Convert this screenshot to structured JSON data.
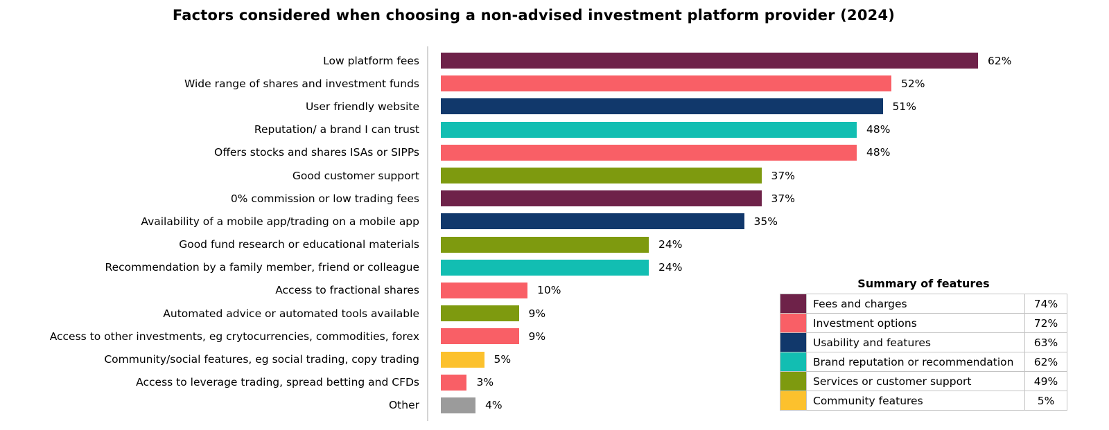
{
  "title": "Factors considered when choosing a non-advised investment platform provider (2024)",
  "colors": {
    "maroon": "#6e2249",
    "coral": "#f95f66",
    "navy": "#11386b",
    "teal": "#12beb2",
    "olive": "#7e9a0f",
    "yellow": "#fcc12d",
    "gray": "#9b9b9b"
  },
  "chart_data": [
    {
      "type": "bar",
      "orientation": "horizontal",
      "title": "Factors considered when choosing a non-advised investment platform provider (2024)",
      "categories": [
        "Low platform fees",
        "Wide range of shares and investment funds",
        "User friendly website",
        "Reputation/ a brand I can trust",
        "Offers stocks and shares ISAs or SIPPs",
        "Good customer support",
        "0% commission or low trading fees",
        "Availability of a mobile app/trading on a mobile app",
        "Good fund research or educational materials",
        "Recommendation by a family member, friend or colleague",
        "Access to fractional shares",
        "Automated advice or automated tools available",
        "Access to other investments, eg crytocurrencies, commodities, forex",
        "Community/social features, eg social trading, copy trading",
        "Access to leverage trading, spread betting and CFDs",
        "Other"
      ],
      "values": [
        62,
        52,
        51,
        48,
        48,
        37,
        37,
        35,
        24,
        24,
        10,
        9,
        9,
        5,
        3,
        4
      ],
      "value_labels": [
        "62%",
        "52%",
        "51%",
        "48%",
        "48%",
        "37%",
        "37%",
        "35%",
        "24%",
        "24%",
        "10%",
        "9%",
        "9%",
        "5%",
        "3%",
        "4%"
      ],
      "bar_colors": [
        "maroon",
        "coral",
        "navy",
        "teal",
        "coral",
        "olive",
        "maroon",
        "navy",
        "olive",
        "teal",
        "coral",
        "olive",
        "coral",
        "yellow",
        "coral",
        "gray"
      ],
      "xlim": [
        0,
        74
      ],
      "grid": false,
      "legend_position": "none"
    },
    {
      "type": "table",
      "title": "Summary of features",
      "rows": [
        {
          "label": "Fees and charges",
          "value": "74%",
          "color": "maroon"
        },
        {
          "label": "Investment options",
          "value": "72%",
          "color": "coral"
        },
        {
          "label": "Usability and features",
          "value": "63%",
          "color": "navy"
        },
        {
          "label": "Brand reputation or recommendation",
          "value": "62%",
          "color": "teal"
        },
        {
          "label": "Services or customer support",
          "value": "49%",
          "color": "olive"
        },
        {
          "label": "Community features",
          "value": "5%",
          "color": "yellow"
        }
      ]
    }
  ]
}
